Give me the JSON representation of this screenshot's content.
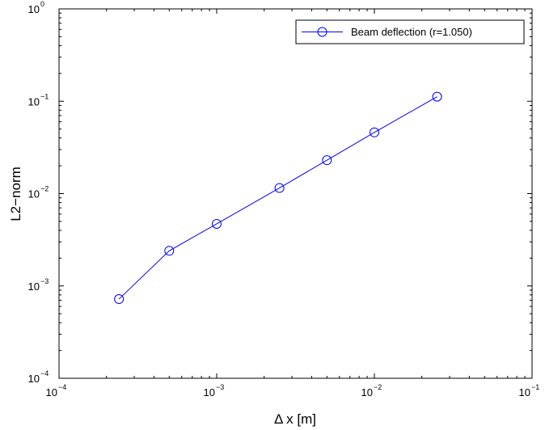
{
  "chart_data": {
    "type": "line",
    "title": "",
    "xlabel": "Δ x [m]",
    "ylabel": "L2−norm",
    "xscale": "log",
    "yscale": "log",
    "xlim": [
      0.0001,
      0.1
    ],
    "ylim": [
      0.0001,
      1
    ],
    "x_ticks": [
      {
        "base": "10",
        "exp": "−4"
      },
      {
        "base": "10",
        "exp": "−3"
      },
      {
        "base": "10",
        "exp": "−2"
      },
      {
        "base": "10",
        "exp": "−1"
      }
    ],
    "y_ticks": [
      {
        "base": "10",
        "exp": "−4"
      },
      {
        "base": "10",
        "exp": "−3"
      },
      {
        "base": "10",
        "exp": "−2"
      },
      {
        "base": "10",
        "exp": "−1"
      },
      {
        "base": "10",
        "exp": "0"
      }
    ],
    "grid": false,
    "legend_position": "top-right",
    "series": [
      {
        "name": "Beam deflection (r=1.050)",
        "color": "#0000ff",
        "marker": "circle",
        "x": [
          0.00024,
          0.0005,
          0.001,
          0.0025,
          0.005,
          0.01,
          0.025
        ],
        "y": [
          0.00072,
          0.0024,
          0.0047,
          0.0115,
          0.023,
          0.046,
          0.112
        ]
      }
    ]
  }
}
